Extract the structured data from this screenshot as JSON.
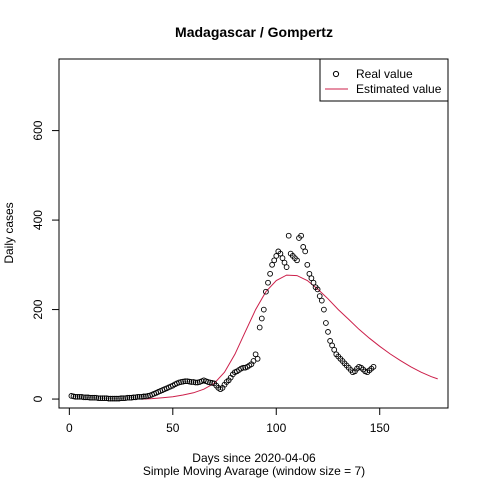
{
  "chart_data": {
    "type": "scatter",
    "title": "Madagascar / Gompertz",
    "xlabel": "Days since 2020-04-06",
    "xlabel2": "Simple Moving Avarage (window size = 7)",
    "ylabel": "Daily cases",
    "xlim": [
      -5,
      183
    ],
    "ylim": [
      -20,
      760
    ],
    "xticks": [
      0,
      50,
      100,
      150
    ],
    "yticks": [
      0,
      200,
      400,
      600
    ],
    "legend_position": "top-right",
    "colors": {
      "real": "#000000",
      "estimated": "#cc1f4a"
    },
    "series": [
      {
        "name": "Real value",
        "kind": "points",
        "x": [
          1,
          2,
          3,
          4,
          5,
          6,
          7,
          8,
          9,
          10,
          11,
          12,
          13,
          14,
          15,
          16,
          17,
          18,
          19,
          20,
          21,
          22,
          23,
          24,
          25,
          26,
          27,
          28,
          29,
          30,
          31,
          32,
          33,
          34,
          35,
          36,
          37,
          38,
          39,
          40,
          41,
          42,
          43,
          44,
          45,
          46,
          47,
          48,
          49,
          50,
          51,
          52,
          53,
          54,
          55,
          56,
          57,
          58,
          59,
          60,
          61,
          62,
          63,
          64,
          65,
          66,
          67,
          68,
          69,
          70,
          71,
          72,
          73,
          74,
          75,
          76,
          77,
          78,
          79,
          80,
          81,
          82,
          83,
          84,
          85,
          86,
          87,
          88,
          89,
          90,
          91,
          92,
          93,
          94,
          95,
          96,
          97,
          98,
          99,
          100,
          101,
          102,
          103,
          104,
          105,
          106,
          107,
          108,
          109,
          110,
          111,
          112,
          113,
          114,
          115,
          116,
          117,
          118,
          119,
          120,
          121,
          122,
          123,
          124,
          125,
          126,
          127,
          128,
          129,
          130,
          131,
          132,
          133,
          134,
          135,
          136,
          137,
          138,
          139,
          140,
          141,
          142,
          143,
          144,
          145,
          146,
          147
        ],
        "y": [
          7,
          6,
          5,
          5,
          5,
          5,
          4,
          4,
          4,
          3,
          3,
          3,
          3,
          2,
          2,
          2,
          2,
          2,
          1,
          1,
          1,
          1,
          1,
          1,
          2,
          2,
          2,
          3,
          3,
          3,
          4,
          4,
          5,
          5,
          5,
          6,
          6,
          7,
          8,
          10,
          12,
          14,
          16,
          18,
          20,
          22,
          24,
          26,
          28,
          30,
          33,
          35,
          37,
          38,
          39,
          40,
          40,
          39,
          38,
          38,
          37,
          37,
          38,
          40,
          42,
          40,
          38,
          37,
          36,
          35,
          30,
          25,
          22,
          25,
          32,
          38,
          42,
          48,
          55,
          60,
          62,
          65,
          68,
          70,
          70,
          72,
          75,
          78,
          85,
          100,
          90,
          160,
          180,
          200,
          240,
          260,
          280,
          300,
          310,
          320,
          330,
          325,
          315,
          305,
          295,
          365,
          325,
          320,
          315,
          310,
          360,
          365,
          340,
          330,
          300,
          280,
          270,
          260,
          250,
          245,
          230,
          220,
          200,
          170,
          150,
          130,
          120,
          110,
          100,
          95,
          90,
          85,
          80,
          75,
          70,
          65,
          60,
          62,
          68,
          72,
          70,
          66,
          62,
          60,
          64,
          68,
          72
        ]
      },
      {
        "name": "Estimated value",
        "kind": "line",
        "x": [
          35,
          40,
          45,
          50,
          55,
          60,
          65,
          70,
          75,
          80,
          85,
          90,
          95,
          100,
          105,
          110,
          115,
          120,
          125,
          130,
          135,
          140,
          145,
          150,
          155,
          160,
          165,
          170,
          175,
          178
        ],
        "y": [
          0,
          1,
          3,
          5,
          9,
          14,
          22,
          35,
          60,
          100,
          150,
          200,
          240,
          265,
          277,
          276,
          265,
          246,
          224,
          200,
          178,
          156,
          136,
          118,
          101,
          86,
          72,
          60,
          50,
          45
        ]
      }
    ]
  }
}
